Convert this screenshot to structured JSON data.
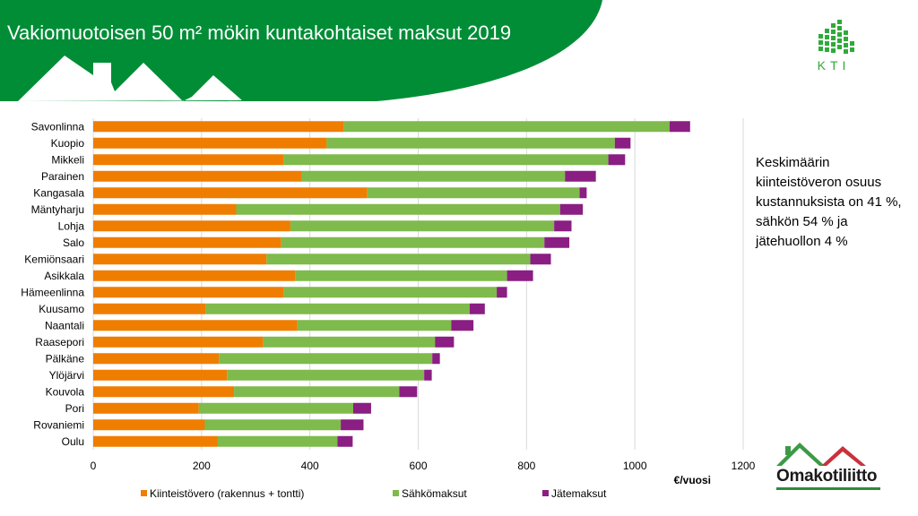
{
  "header": {
    "title": "Vakiomuotoisen 50 m² mökin kuntakohtaiset maksut 2019",
    "bg_color": "#008d36"
  },
  "kti_logo": {
    "text": "KTI",
    "color": "#2faa3a"
  },
  "note": {
    "text": "Keskimäärin kiinteistöveron osuus kustannuksista on 41 %, sähkön 54 % ja jätehuollon 4 %"
  },
  "omakoti_logo": {
    "text": "Omakotiliitto",
    "roof_colors": [
      "#3c9a46",
      "#c8323c"
    ]
  },
  "chart_data": {
    "type": "bar",
    "orientation": "horizontal",
    "stacked": true,
    "categories": [
      "Savonlinna",
      "Kuopio",
      "Mikkeli",
      "Parainen",
      "Kangasala",
      "Mäntyharju",
      "Lohja",
      "Salo",
      "Kemiönsaari",
      "Asikkala",
      "Hämeenlinna",
      "Kuusamo",
      "Naantali",
      "Raasepori",
      "Pälkäne",
      "Ylöjärvi",
      "Kouvola",
      "Pori",
      "Rovaniemi",
      "Oulu"
    ],
    "series": [
      {
        "name": "Kiinteistövero (rakennus + tontti)",
        "color": "#ef7d00",
        "values": [
          463,
          431,
          352,
          384,
          506,
          264,
          364,
          347,
          320,
          373,
          352,
          208,
          377,
          314,
          232,
          247,
          260,
          195,
          206,
          230
        ]
      },
      {
        "name": "Sähkömaksut",
        "color": "#7fba4c",
        "values": [
          601,
          532,
          599,
          487,
          392,
          598,
          487,
          486,
          487,
          391,
          393,
          487,
          284,
          317,
          394,
          364,
          305,
          285,
          251,
          221
        ]
      },
      {
        "name": "Jätemaksut",
        "color": "#8a1e82",
        "values": [
          38,
          29,
          31,
          57,
          13,
          42,
          32,
          46,
          38,
          48,
          19,
          28,
          41,
          35,
          14,
          14,
          33,
          33,
          42,
          28
        ]
      }
    ],
    "xlim": [
      0,
      1200
    ],
    "xticks": [
      0,
      200,
      400,
      600,
      800,
      1000,
      1200
    ],
    "xlabel": "€/vuosi",
    "grid": true,
    "legend": "bottom"
  }
}
